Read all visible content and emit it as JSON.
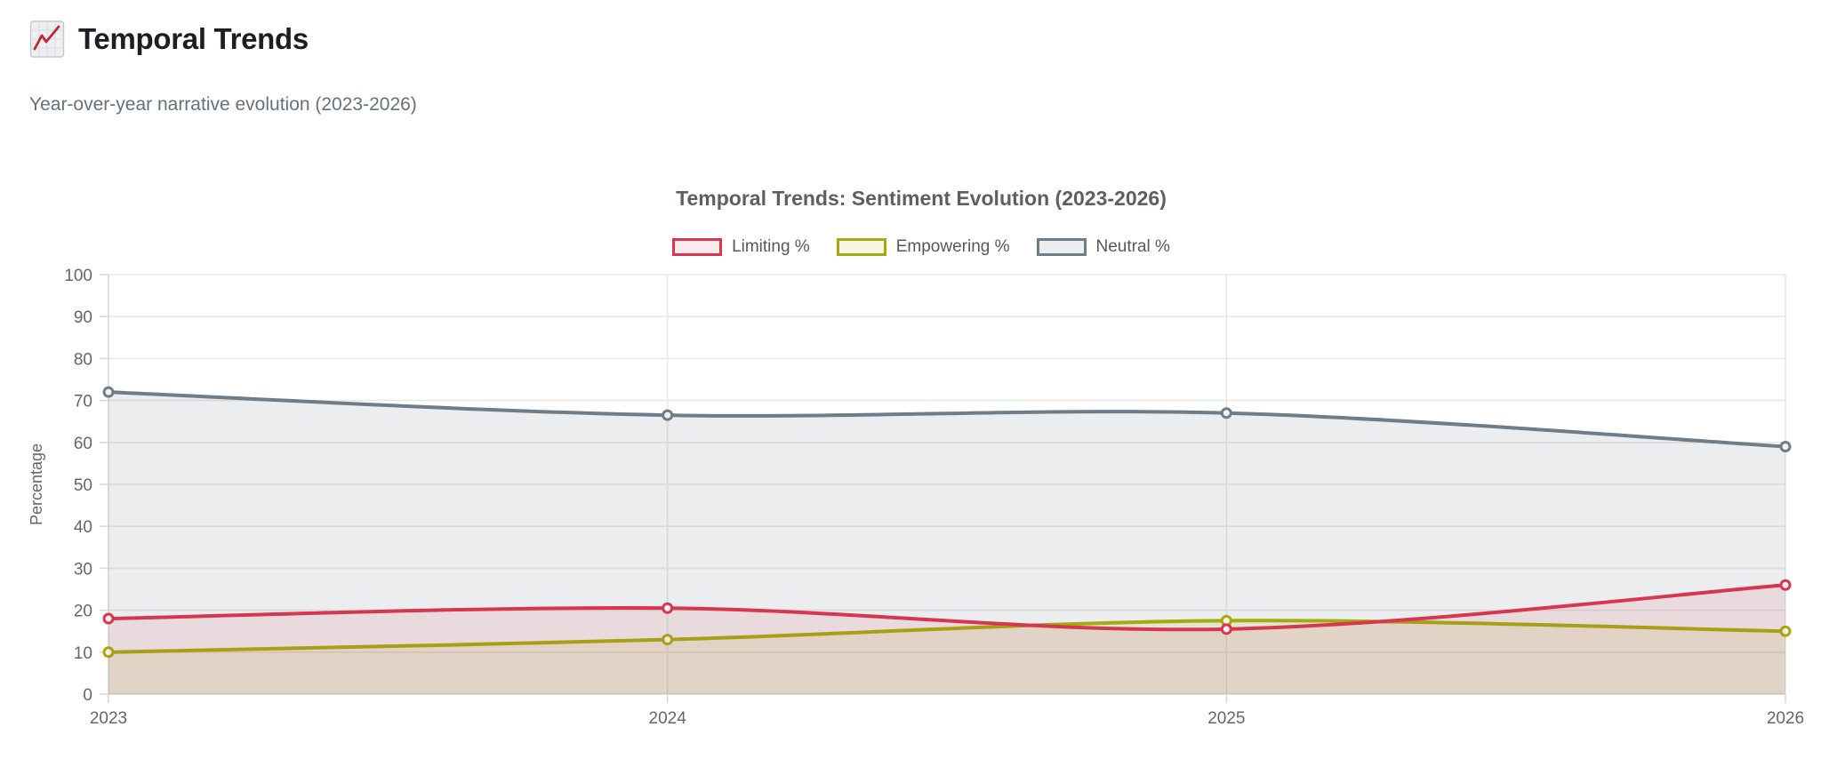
{
  "page": {
    "title": "Temporal Trends",
    "title_icon": "chart-increasing-icon",
    "subtitle": "Year-over-year narrative evolution (2023-2026)"
  },
  "chart_data": {
    "type": "line",
    "title": "Temporal Trends: Sentiment Evolution (2023-2026)",
    "categories": [
      "2023",
      "2024",
      "2025",
      "2026"
    ],
    "series": [
      {
        "name": "Limiting %",
        "values": [
          18,
          20.5,
          15.5,
          26
        ],
        "color": "#d7374e",
        "fill_color": "rgba(215,55,78,0.10)",
        "point_fill": "#fbeef0"
      },
      {
        "name": "Empowering %",
        "values": [
          10,
          13,
          17.5,
          15
        ],
        "color": "#a2ac0e",
        "fill_color": "rgba(162,172,14,0.12)",
        "point_fill": "#f6f7e7"
      },
      {
        "name": "Neutral %",
        "values": [
          72,
          66.5,
          67,
          59
        ],
        "color": "#6e7d8a",
        "fill_color": "rgba(110,125,138,0.14)",
        "point_fill": "#f0f2f4"
      }
    ],
    "xlabel": "",
    "ylabel": "Percentage",
    "ylim": [
      0,
      100
    ],
    "ytick_step": 10,
    "grid": true,
    "legend_position": "top",
    "line_tension": 0.4,
    "axis_text_color": "#666666",
    "gridline_color": "#e8e8e8",
    "axis_border_color": "#d9d9d9"
  }
}
